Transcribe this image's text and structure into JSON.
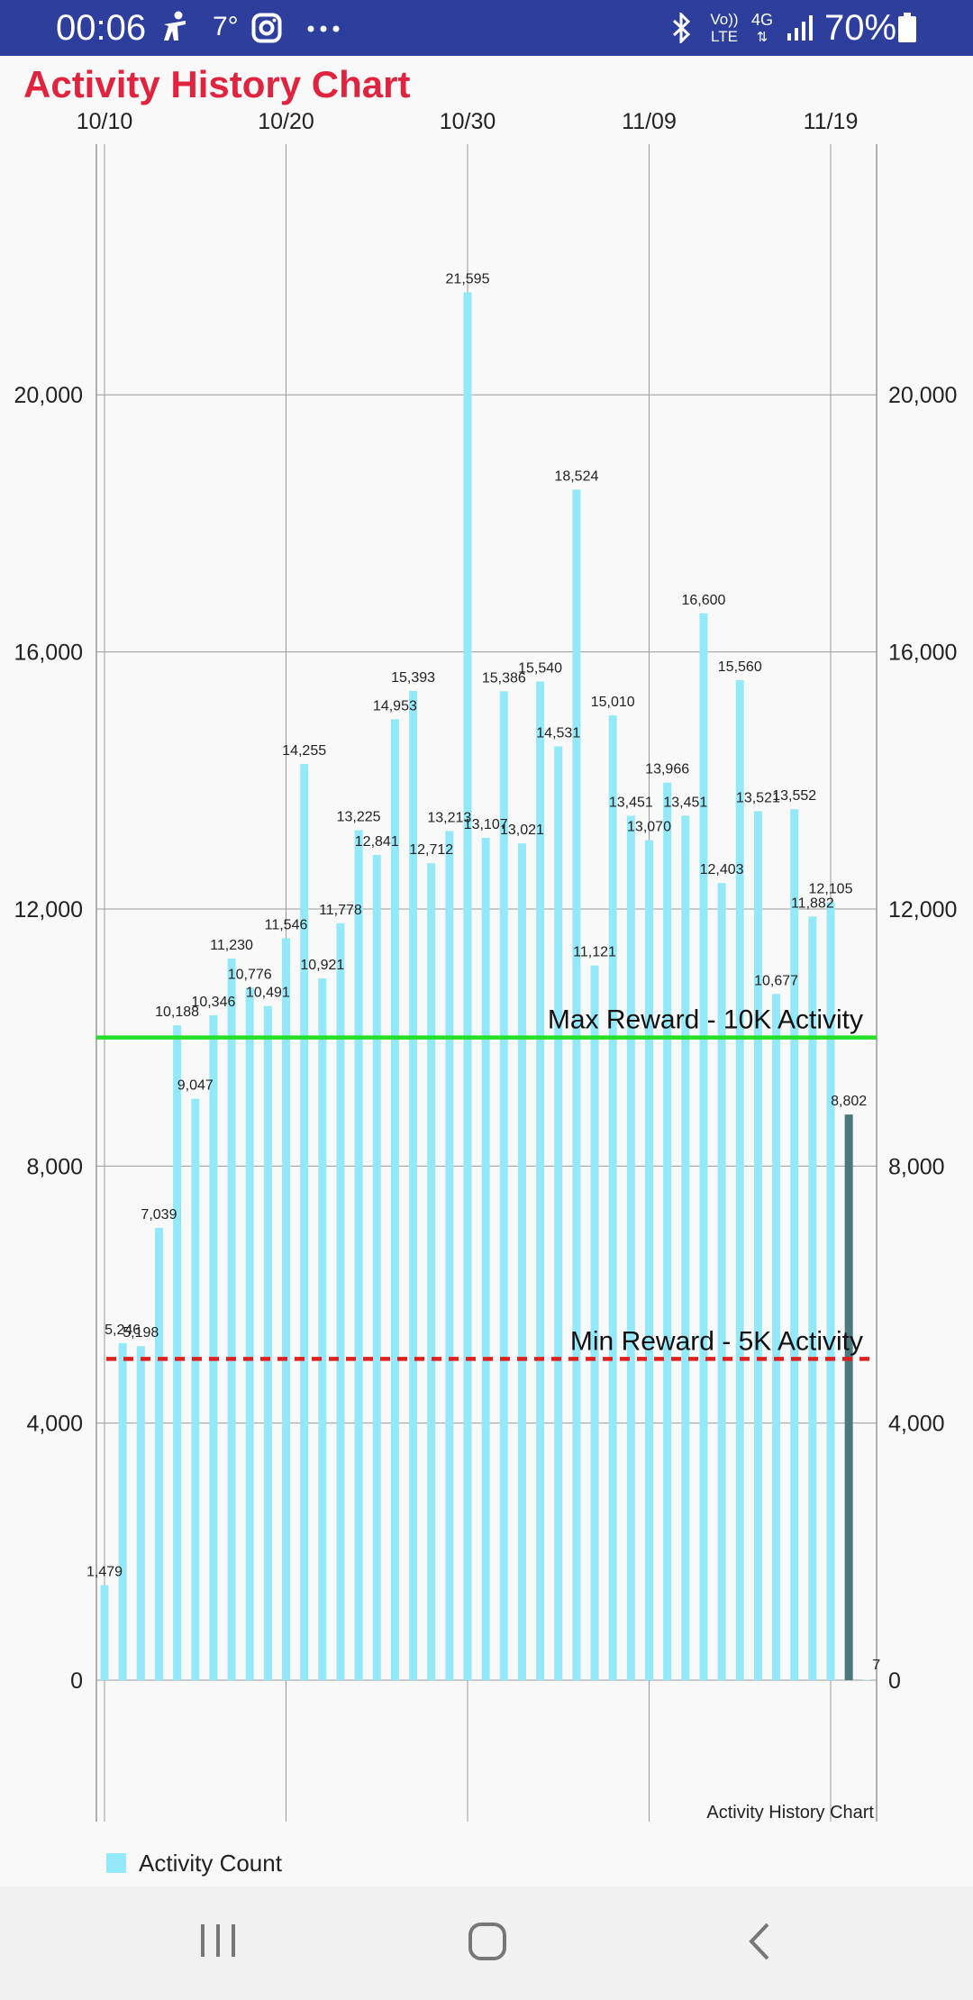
{
  "status_bar": {
    "time": "00:06",
    "weather_temp": "7°",
    "network": {
      "volte_top": "Vo))",
      "volte_bottom": "LTE",
      "data_type": "4G"
    },
    "battery_percent": "70%",
    "icons": [
      "accessibility-icon",
      "instagram-icon",
      "more-notifications-icon",
      "bluetooth-icon",
      "volte-icon",
      "data-4g-icon",
      "signal-icon",
      "battery-icon"
    ]
  },
  "app": {
    "title": "Activity History Chart"
  },
  "chart_data": {
    "type": "bar",
    "description_label": "Activity History Chart",
    "x_tick_labels": [
      "10/10",
      "10/20",
      "10/30",
      "11/09",
      "11/19"
    ],
    "x_tick_day_index": [
      0,
      10,
      20,
      30,
      40
    ],
    "y_ticks": [
      0,
      4000,
      8000,
      12000,
      16000,
      20000
    ],
    "y_tick_labels": [
      "0",
      "4,000",
      "8,000",
      "12,000",
      "16,000",
      "20,000"
    ],
    "ylim": [
      -2200,
      23900
    ],
    "series": [
      {
        "name": "Activity Count",
        "color": "#93e9f9",
        "values": [
          1479,
          5246,
          5198,
          7039,
          10188,
          9047,
          10346,
          11230,
          10776,
          10491,
          11546,
          14255,
          10921,
          11778,
          13225,
          12841,
          14953,
          15393,
          12712,
          13213,
          21595,
          13107,
          15386,
          13021,
          15540,
          14531,
          18524,
          11121,
          15010,
          13451,
          13070,
          13966,
          13451,
          16600,
          12403,
          15560,
          13521,
          10677,
          13552,
          11882,
          12105,
          8802,
          7
        ],
        "labels": [
          "1,479",
          "5,246",
          "5,198",
          "7,039",
          "10,188",
          "9,047",
          "10,346",
          "11,230",
          "10,776",
          "10,491",
          "11,546",
          "14,255",
          "10,921",
          "11,778",
          "13,225",
          "12,841",
          "14,953",
          "15,393",
          "12,712",
          "13,213",
          "21,595",
          "13,107",
          "15,386",
          "13,021",
          "15,540",
          "14,531",
          "18,524",
          "11,121",
          "15,010",
          "13,451",
          "13,070",
          "13,966",
          "13,451",
          "16,600",
          "12,403",
          "15,560",
          "13,521",
          "10,677",
          "13,552",
          "11,882",
          "12,105",
          "8,802",
          "7"
        ],
        "highlight_index": 41,
        "highlight_color": "#4a7a80"
      }
    ],
    "reference_lines": [
      {
        "value": 10000,
        "label": "Max Reward - 10K Activity",
        "color": "#22e024",
        "style": "solid"
      },
      {
        "value": 5000,
        "label": "Min Reward - 5K Activity",
        "color": "#e01f1f",
        "style": "dashed"
      }
    ],
    "grid": true,
    "legend_position": "bottom-left"
  },
  "legend": {
    "label": "Activity Count",
    "color": "#93e9f9"
  },
  "nav_bar": {
    "buttons": [
      "recents-button",
      "home-button",
      "back-button"
    ]
  }
}
